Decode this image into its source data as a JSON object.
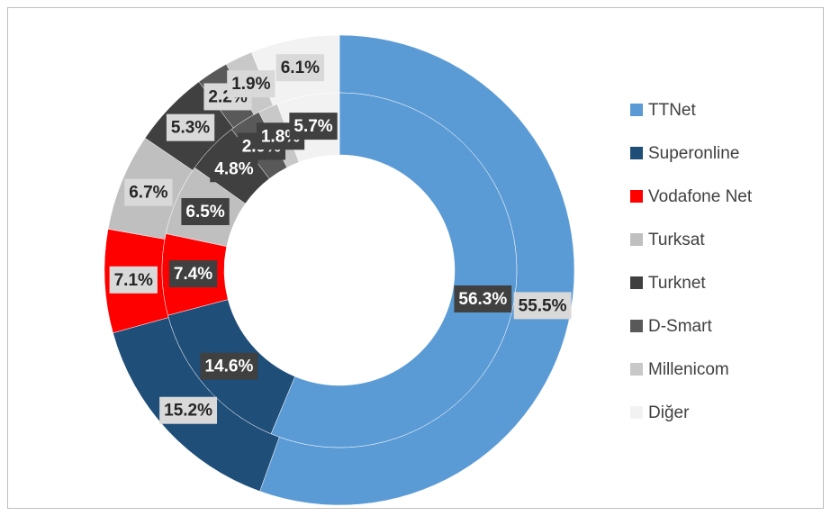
{
  "chart_data": {
    "type": "donut",
    "categories": [
      "TTNet",
      "Superonline",
      "Vodafone Net",
      "Turksat",
      "Turknet",
      "D-Smart",
      "Millenicom",
      "Diğer"
    ],
    "colors": [
      "#5b9bd5",
      "#1f4e79",
      "#ff0000",
      "#bfbfbf",
      "#404040",
      "#595959",
      "#c8c8c8",
      "#f2f2f2"
    ],
    "series": [
      {
        "values": [
          55.5,
          15.2,
          7.1,
          6.7,
          5.3,
          2.2,
          1.9,
          6.1
        ],
        "value_labels": [
          "55.5%",
          "15.2%",
          "7.1%",
          "6.7%",
          "5.3%",
          "2.2%",
          "1.9%",
          "6.1%"
        ]
      },
      {
        "values": [
          56.3,
          14.6,
          7.4,
          6.5,
          4.8,
          2.9,
          1.8,
          5.7
        ],
        "value_labels": [
          "56.3%",
          "14.6%",
          "7.4%",
          "6.5%",
          "4.8%",
          "2.9%",
          "1.8%",
          "5.7%"
        ]
      }
    ],
    "legend": "right"
  }
}
